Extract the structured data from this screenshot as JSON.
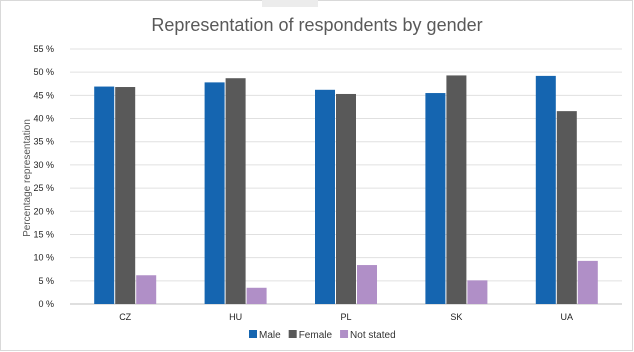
{
  "chart_data": {
    "type": "bar",
    "title": "Representation of respondents by gender",
    "xlabel": "",
    "ylabel": "Percentage representation",
    "categories": [
      "CZ",
      "HU",
      "PL",
      "SK",
      "UA"
    ],
    "series": [
      {
        "name": "Male",
        "color": "#1565b0",
        "values": [
          46.9,
          47.8,
          46.2,
          45.5,
          49.2
        ]
      },
      {
        "name": "Female",
        "color": "#595959",
        "values": [
          46.8,
          48.7,
          45.3,
          49.3,
          41.6
        ]
      },
      {
        "name": "Not stated",
        "color": "#b08fc7",
        "values": [
          6.2,
          3.5,
          8.4,
          5.1,
          9.3
        ]
      }
    ],
    "ylim": [
      0,
      55
    ],
    "yticks": [
      "0 %",
      "5 %",
      "10 %",
      "15 %",
      "20 %",
      "25 %",
      "30 %",
      "35 %",
      "40 %",
      "45 %",
      "50 %",
      "55 %"
    ],
    "grid": true,
    "legend_position": "bottom"
  }
}
